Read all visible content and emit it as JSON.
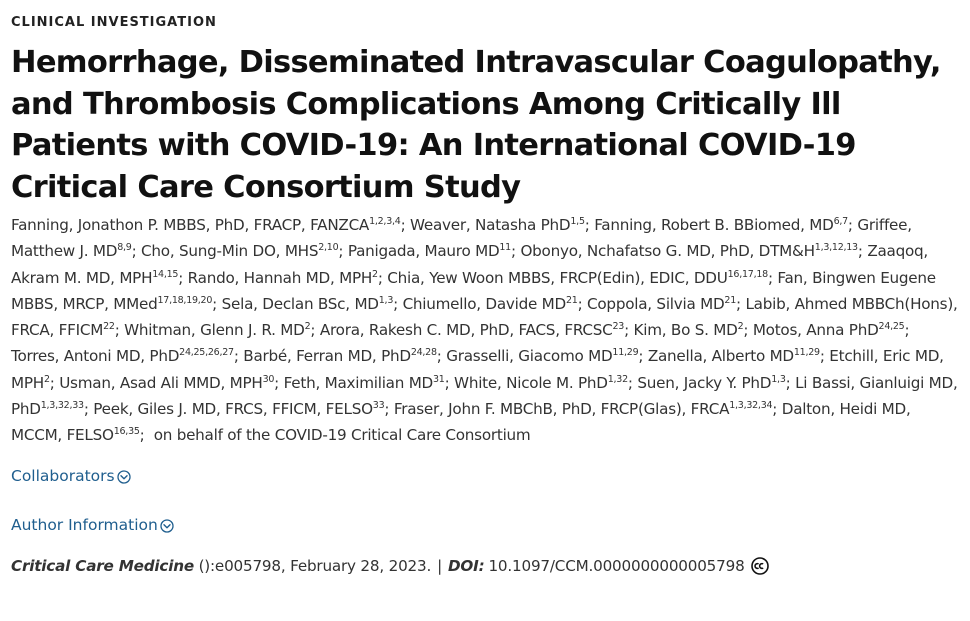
{
  "article": {
    "category": "CLINICAL INVESTIGATION",
    "title": "Hemorrhage, Disseminated Intravascular Coagulopathy, and Thrombosis Complications Among Critically Ill Patients with COVID-19: An International COVID-19 Critical Care Consortium Study",
    "authors": [
      {
        "name": "Fanning, Jonathon P. MBBS, PhD, FRACP, FANZCA",
        "aff": "1,2,3,4"
      },
      {
        "name": "Weaver, Natasha PhD",
        "aff": "1,5"
      },
      {
        "name": "Fanning, Robert B. BBiomed, MD",
        "aff": "6,7"
      },
      {
        "name": "Griffee, Matthew J. MD",
        "aff": "8,9"
      },
      {
        "name": "Cho, Sung-Min DO, MHS",
        "aff": "2,10"
      },
      {
        "name": "Panigada, Mauro MD",
        "aff": "11"
      },
      {
        "name": "Obonyo, Nchafatso G. MD, PhD, DTM&H",
        "aff": "1,3,12,13"
      },
      {
        "name": "Zaaqoq, Akram M. MD, MPH",
        "aff": "14,15"
      },
      {
        "name": "Rando, Hannah MD, MPH",
        "aff": "2"
      },
      {
        "name": "Chia, Yew Woon MBBS, FRCP(Edin), EDIC, DDU",
        "aff": "16,17,18"
      },
      {
        "name": "Fan, Bingwen Eugene MBBS, MRCP, MMed",
        "aff": "17,18,19,20"
      },
      {
        "name": "Sela, Declan BSc, MD",
        "aff": "1,3"
      },
      {
        "name": "Chiumello, Davide MD",
        "aff": "21"
      },
      {
        "name": "Coppola, Silvia MD",
        "aff": "21"
      },
      {
        "name": "Labib, Ahmed MBBCh(Hons), FRCA, FFICM",
        "aff": "22"
      },
      {
        "name": "Whitman, Glenn J. R. MD",
        "aff": "2"
      },
      {
        "name": "Arora, Rakesh C. MD, PhD, FACS, FRCSC",
        "aff": "23"
      },
      {
        "name": "Kim, Bo S. MD",
        "aff": "2"
      },
      {
        "name": "Motos, Anna PhD",
        "aff": "24,25"
      },
      {
        "name": "Torres, Antoni MD, PhD",
        "aff": "24,25,26,27"
      },
      {
        "name": "Barbé, Ferran MD, PhD",
        "aff": "24,28"
      },
      {
        "name": "Grasselli, Giacomo MD",
        "aff": "11,29"
      },
      {
        "name": "Zanella, Alberto MD",
        "aff": "11,29"
      },
      {
        "name": "Etchill, Eric MD, MPH",
        "aff": "2"
      },
      {
        "name": "Usman, Asad Ali MMD, MPH",
        "aff": "30"
      },
      {
        "name": "Feth, Maximilian MD",
        "aff": "31"
      },
      {
        "name": "White, Nicole M. PhD",
        "aff": "1,32"
      },
      {
        "name": "Suen, Jacky Y. PhD",
        "aff": "1,3"
      },
      {
        "name": "Li Bassi, Gianluigi MD, PhD",
        "aff": "1,3,32,33"
      },
      {
        "name": "Peek, Giles J. MD, FRCS, FFICM, FELSO",
        "aff": "33"
      },
      {
        "name": "Fraser, John F. MBChB, PhD, FRCP(Glas), FRCA",
        "aff": "1,3,32,34"
      },
      {
        "name": "Dalton, Heidi MD, MCCM, FELSO",
        "aff": "16,35"
      }
    ],
    "on_behalf": "on behalf of the COVID-19 Critical Care Consortium",
    "collaborators_label": "Collaborators",
    "author_info_label": "Author Information",
    "citation": {
      "journal": "Critical Care Medicine",
      "issue": " ():e005798, February 28, 2023.",
      "separator": "|",
      "doi_label": "DOI:",
      "doi": "10.1097/CCM.0000000000005798"
    }
  },
  "icons": {
    "chevron": "chevron-down-circle-icon",
    "license": "creative-commons-icon"
  },
  "colors": {
    "link": "#1f5e8e",
    "title": "#111111",
    "text": "#333333"
  }
}
